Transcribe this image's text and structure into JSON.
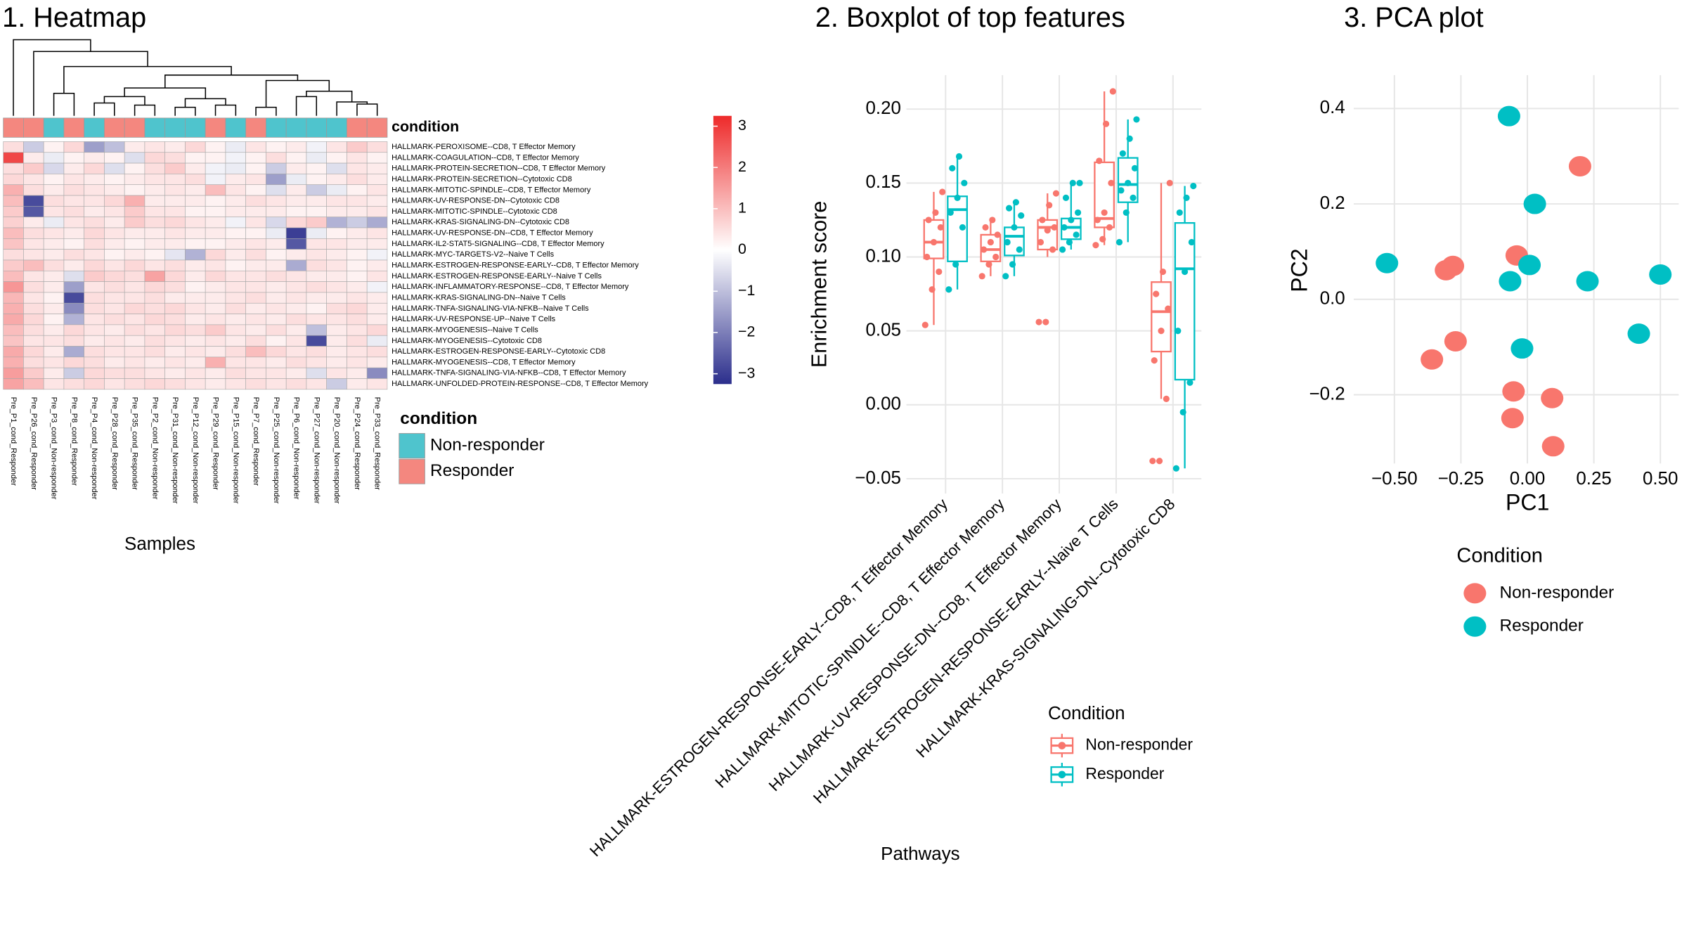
{
  "chart_data": [
    {
      "type": "heatmap",
      "title": "1. Heatmap",
      "x_label": "Samples",
      "condition_label": "condition",
      "legend_title": "condition",
      "condition_levels": [
        {
          "name": "Non-responder",
          "color": "#4fc4cd"
        },
        {
          "name": "Responder",
          "color": "#f4877f"
        }
      ],
      "columns": [
        "Pre_P1_cond_Responder",
        "Pre_P26_cond_Responder",
        "Pre_P3_cond_Non-responder",
        "Pre_P8_cond_Responder",
        "Pre_P4_cond_Non-responder",
        "Pre_P28_cond_Responder",
        "Pre_P35_cond_Responder",
        "Pre_P2_cond_Non-responder",
        "Pre_P31_cond_Non-responder",
        "Pre_P12_cond_Non-responder",
        "Pre_P29_cond_Responder",
        "Pre_P15_cond_Non-responder",
        "Pre_P7_cond_Responder",
        "Pre_P25_cond_Non-responder",
        "Pre_P6_cond_Non-responder",
        "Pre_P27_cond_Non-responder",
        "Pre_P20_cond_Non-responder",
        "Pre_P24_cond_Responder",
        "Pre_P33_cond_Responder"
      ],
      "column_conditions": [
        "Responder",
        "Responder",
        "Non-responder",
        "Responder",
        "Non-responder",
        "Responder",
        "Responder",
        "Non-responder",
        "Non-responder",
        "Non-responder",
        "Responder",
        "Non-responder",
        "Responder",
        "Non-responder",
        "Non-responder",
        "Non-responder",
        "Non-responder",
        "Responder",
        "Responder"
      ],
      "rows": [
        "HALLMARK-PEROXISOME--CD8, T Effector Memory",
        "HALLMARK-COAGULATION--CD8, T Effector Memory",
        "HALLMARK-PROTEIN-SECRETION--CD8, T Effector Memory",
        "HALLMARK-PROTEIN-SECRETION--Cytotoxic CD8",
        "HALLMARK-MITOTIC-SPINDLE--CD8, T Effector Memory",
        "HALLMARK-UV-RESPONSE-DN--Cytotoxic CD8",
        "HALLMARK-MITOTIC-SPINDLE--Cytotoxic CD8",
        "HALLMARK-KRAS-SIGNALING-DN--Cytotoxic CD8",
        "HALLMARK-UV-RESPONSE-DN--CD8, T Effector Memory",
        "HALLMARK-IL2-STAT5-SIGNALING--CD8, T Effector Memory",
        "HALLMARK-MYC-TARGETS-V2--Naive T Cells",
        "HALLMARK-ESTROGEN-RESPONSE-EARLY--CD8, T Effector Memory",
        "HALLMARK-ESTROGEN-RESPONSE-EARLY--Naive T Cells",
        "HALLMARK-INFLAMMATORY-RESPONSE--CD8, T Effector Memory",
        "HALLMARK-KRAS-SIGNALING-DN--Naive T Cells",
        "HALLMARK-TNFA-SIGNALING-VIA-NFKB--Naive T Cells",
        "HALLMARK-UV-RESPONSE-UP--Naive T Cells",
        "HALLMARK-MYOGENESIS--Naive T Cells",
        "HALLMARK-MYOGENESIS--Cytotoxic CD8",
        "HALLMARK-ESTROGEN-RESPONSE-EARLY--Cytotoxic CD8",
        "HALLMARK-MYOGENESIS--CD8, T Effector Memory",
        "HALLMARK-TNFA-SIGNALING-VIA-NFKB--CD8, T Effector Memory",
        "HALLMARK-UNFOLDED-PROTEIN-RESPONSE--CD8, T Effector Memory"
      ],
      "values": [
        [
          0.5,
          -0.8,
          0.2,
          0.6,
          -1.5,
          -1,
          0.3,
          0.4,
          0.3,
          0.6,
          0.2,
          -0.3,
          0.4,
          0.2,
          0.3,
          -0.2,
          0.4,
          0.8,
          0.5
        ],
        [
          2.8,
          0.3,
          -0.3,
          0.2,
          0.3,
          0.2,
          -0.5,
          0.6,
          0.5,
          0.2,
          0.2,
          -0.2,
          0.2,
          0.5,
          0.2,
          -0.3,
          0.2,
          0.4,
          0.2
        ],
        [
          0.5,
          0.8,
          -0.6,
          0.3,
          0.6,
          -0.5,
          0.2,
          0.5,
          0.8,
          0.3,
          -0.2,
          -0.3,
          0.2,
          -0.8,
          0.3,
          0.2,
          -0.5,
          0.4,
          0.3
        ],
        [
          0.6,
          0.4,
          0.2,
          0.4,
          0.3,
          0.2,
          0.3,
          0.4,
          0.4,
          0.5,
          -0.2,
          0.3,
          0.4,
          -1.5,
          -0.3,
          0.2,
          0.3,
          0.5,
          0.3
        ],
        [
          1.2,
          0.5,
          0.3,
          0.5,
          0.4,
          0.3,
          0.2,
          0.3,
          0.4,
          0.3,
          1.0,
          0.4,
          0.2,
          -0.5,
          0.3,
          -0.8,
          -0.3,
          0.2,
          0.4
        ],
        [
          1.0,
          -2.8,
          0.5,
          0.4,
          0.4,
          0.6,
          1.2,
          0.3,
          0.3,
          0.3,
          0.2,
          0.3,
          0.5,
          0.4,
          0.3,
          0.3,
          0.4,
          0.4,
          0.3
        ],
        [
          0.8,
          -2.6,
          0.4,
          0.5,
          0.3,
          0.4,
          0.8,
          0.4,
          0.4,
          0.2,
          0.2,
          0.3,
          0.3,
          0.3,
          0.2,
          0.2,
          0.3,
          0.3,
          0.4
        ],
        [
          0.7,
          0.3,
          -0.3,
          0.4,
          0.5,
          0.3,
          0.8,
          0.5,
          0.6,
          0.4,
          0.3,
          -0.2,
          0.4,
          -0.6,
          0.6,
          0.8,
          -1.2,
          -0.8,
          -1.3
        ],
        [
          1.0,
          0.5,
          0.4,
          0.3,
          0.6,
          0.4,
          0.3,
          0.3,
          0.4,
          0.3,
          0.3,
          0.2,
          0.2,
          -0.3,
          -3.0,
          -0.3,
          0.2,
          0.3,
          0.4
        ],
        [
          0.9,
          0.4,
          0.3,
          0.2,
          0.5,
          0.3,
          0.2,
          0.3,
          0.3,
          0.2,
          0.2,
          0.3,
          0.4,
          0.3,
          -2.6,
          0.4,
          0.4,
          0.3,
          0.3
        ],
        [
          0.5,
          0.4,
          0.3,
          0.5,
          0.4,
          0.2,
          0.3,
          0.2,
          -0.4,
          -1.2,
          0.6,
          0.3,
          0.5,
          0.2,
          0.3,
          0.4,
          0.3,
          0.2,
          -0.2
        ],
        [
          0.8,
          1.0,
          0.5,
          0.3,
          0.6,
          0.4,
          0.6,
          0.4,
          0.5,
          0.3,
          0.4,
          0.2,
          0.3,
          0.3,
          -1.3,
          0.5,
          0.4,
          0.2,
          0.3
        ],
        [
          1.0,
          0.4,
          0.3,
          -0.5,
          0.8,
          0.6,
          0.5,
          1.4,
          0.6,
          0.3,
          0.6,
          0.4,
          0.4,
          0.5,
          0.4,
          0.3,
          0.3,
          0.2,
          0.4
        ],
        [
          1.6,
          0.5,
          0.3,
          -1.5,
          0.4,
          0.5,
          0.4,
          0.6,
          0.5,
          0.2,
          0.3,
          0.4,
          0.4,
          0.3,
          0.4,
          0.5,
          0.4,
          0.3,
          -0.2
        ],
        [
          1.1,
          0.4,
          0.2,
          -2.8,
          0.5,
          0.4,
          0.4,
          0.5,
          0.3,
          0.3,
          0.3,
          0.4,
          0.5,
          0.3,
          0.4,
          0.3,
          0.3,
          0.4,
          0.3
        ],
        [
          1.2,
          0.5,
          0.3,
          -1.8,
          0.5,
          0.4,
          0.6,
          0.5,
          0.6,
          0.4,
          0.3,
          0.5,
          0.3,
          0.4,
          0.3,
          0.2,
          0.5,
          0.6,
          0.3
        ],
        [
          1.3,
          0.6,
          0.2,
          -1.2,
          0.4,
          0.5,
          0.4,
          0.6,
          0.5,
          0.3,
          0.4,
          0.3,
          0.4,
          0.3,
          0.5,
          0.4,
          0.4,
          0.5,
          0.3
        ],
        [
          1.0,
          0.5,
          0.3,
          0.6,
          0.4,
          0.3,
          0.5,
          0.4,
          0.6,
          0.5,
          0.8,
          0.4,
          0.3,
          0.5,
          0.3,
          -1.0,
          0.3,
          0.4,
          0.6
        ],
        [
          0.9,
          0.4,
          0.4,
          0.5,
          0.3,
          0.4,
          0.3,
          0.5,
          0.4,
          0.3,
          0.4,
          0.3,
          0.5,
          0.2,
          0.4,
          -2.8,
          0.3,
          0.5,
          -0.3
        ],
        [
          1.3,
          0.6,
          0.3,
          -1.3,
          0.5,
          0.4,
          0.4,
          0.5,
          0.3,
          0.4,
          0.3,
          0.5,
          1.0,
          0.6,
          0.4,
          0.5,
          0.3,
          0.4,
          0.5
        ],
        [
          1.2,
          0.5,
          0.4,
          0.6,
          0.5,
          0.3,
          0.4,
          0.3,
          0.4,
          0.3,
          1.2,
          0.4,
          0.4,
          0.3,
          0.5,
          0.4,
          0.3,
          0.4,
          0.3
        ],
        [
          1.5,
          0.8,
          0.3,
          -0.8,
          0.6,
          0.5,
          0.5,
          0.4,
          0.3,
          0.4,
          0.3,
          0.5,
          0.4,
          0.4,
          0.3,
          -0.5,
          0.4,
          0.3,
          -1.8
        ],
        [
          1.4,
          1.0,
          0.4,
          0.5,
          0.6,
          0.4,
          0.5,
          0.6,
          0.5,
          0.4,
          0.3,
          0.4,
          0.5,
          0.4,
          0.5,
          0.4,
          -0.8,
          0.3,
          0.4
        ]
      ],
      "clim": [
        -3.25,
        3.25
      ],
      "colors": [
        "#2b2e8c",
        "#ffffff",
        "#ee2a2a"
      ],
      "colorbar_ticks": [
        {
          "value": -3,
          "label": "−3"
        },
        {
          "value": -2,
          "label": "−2"
        },
        {
          "value": -1,
          "label": "−1"
        },
        0,
        1,
        2,
        3
      ]
    },
    {
      "type": "boxplot",
      "title": "2. Boxplot of top features",
      "x_label": "Pathways",
      "y_label": "Enrichment score",
      "legend_title": "Condition",
      "categories": [
        "HALLMARK-ESTROGEN-RESPONSE-EARLY--CD8, T Effector Memory",
        "HALLMARK-MITOTIC-SPINDLE--CD8, T Effector Memory",
        "HALLMARK-UV-RESPONSE-DN--CD8, T Effector Memory",
        "HALLMARK-ESTROGEN-RESPONSE-EARLY--Naive T Cells",
        "HALLMARK-KRAS-SIGNALING-DN--Cytotoxic CD8"
      ],
      "series": [
        {
          "name": "Non-responder",
          "color": "#F8766D",
          "boxes": [
            {
              "min": 0.054,
              "q1": 0.099,
              "median": 0.11,
              "q3": 0.125,
              "max": 0.144
            },
            {
              "min": 0.087,
              "q1": 0.097,
              "median": 0.105,
              "q3": 0.115,
              "max": 0.125
            },
            {
              "min": 0.1,
              "q1": 0.105,
              "median": 0.12,
              "q3": 0.125,
              "max": 0.143
            },
            {
              "min": 0.108,
              "q1": 0.12,
              "median": 0.126,
              "q3": 0.164,
              "max": 0.212
            },
            {
              "min": 0.004,
              "q1": 0.036,
              "median": 0.063,
              "q3": 0.083,
              "max": 0.15
            }
          ],
          "points": [
            [
              0.054,
              0.078,
              0.09,
              0.1,
              0.11,
              0.12,
              0.125,
              0.13,
              0.144
            ],
            [
              0.087,
              0.095,
              0.1,
              0.105,
              0.11,
              0.115,
              0.12,
              0.125
            ],
            [
              0.056,
              0.056,
              0.105,
              0.11,
              0.118,
              0.12,
              0.125,
              0.135,
              0.143
            ],
            [
              0.108,
              0.112,
              0.12,
              0.125,
              0.13,
              0.15,
              0.165,
              0.19,
              0.212
            ],
            [
              -0.038,
              -0.038,
              0.004,
              0.03,
              0.05,
              0.065,
              0.075,
              0.09,
              0.15
            ]
          ]
        },
        {
          "name": "Responder",
          "color": "#00BFC4",
          "boxes": [
            {
              "min": 0.078,
              "q1": 0.097,
              "median": 0.132,
              "q3": 0.141,
              "max": 0.168
            },
            {
              "min": 0.087,
              "q1": 0.101,
              "median": 0.114,
              "q3": 0.12,
              "max": 0.137
            },
            {
              "min": 0.105,
              "q1": 0.112,
              "median": 0.12,
              "q3": 0.126,
              "max": 0.151
            },
            {
              "min": 0.11,
              "q1": 0.137,
              "median": 0.149,
              "q3": 0.167,
              "max": 0.193
            },
            {
              "min": -0.043,
              "q1": 0.017,
              "median": 0.092,
              "q3": 0.123,
              "max": 0.148
            }
          ],
          "points": [
            [
              0.078,
              0.095,
              0.12,
              0.13,
              0.14,
              0.15,
              0.16,
              0.168
            ],
            [
              0.087,
              0.095,
              0.105,
              0.11,
              0.12,
              0.128,
              0.133,
              0.137
            ],
            [
              0.105,
              0.11,
              0.115,
              0.12,
              0.125,
              0.13,
              0.14,
              0.15,
              0.15
            ],
            [
              0.11,
              0.13,
              0.14,
              0.145,
              0.15,
              0.16,
              0.17,
              0.18,
              0.193
            ],
            [
              -0.043,
              -0.005,
              0.015,
              0.05,
              0.09,
              0.11,
              0.13,
              0.14,
              0.148
            ]
          ]
        }
      ],
      "ylim": [
        -0.06,
        0.223
      ],
      "yticks": [
        {
          "value": -0.05,
          "label": "−0.05"
        },
        {
          "value": 0,
          "label": "0.00"
        },
        {
          "value": 0.05,
          "label": "0.05"
        },
        {
          "value": 0.1,
          "label": "0.10"
        },
        {
          "value": 0.15,
          "label": "0.15"
        },
        {
          "value": 0.2,
          "label": "0.20"
        }
      ],
      "grid": true
    },
    {
      "type": "scatter",
      "title": "3. PCA plot",
      "x_label": "PC1",
      "y_label": "PC2",
      "legend_title": "Condition",
      "series": [
        {
          "name": "Non-responder",
          "color": "#F8766D",
          "x": [
            0.198,
            -0.04,
            -0.28,
            -0.306,
            -0.27,
            -0.359,
            -0.052,
            0.093,
            -0.056,
            0.097
          ],
          "y": [
            0.279,
            0.092,
            0.07,
            0.061,
            -0.088,
            -0.126,
            -0.193,
            -0.207,
            -0.249,
            -0.308
          ]
        },
        {
          "name": "Responder",
          "color": "#00BFC4",
          "x": [
            -0.069,
            0.028,
            -0.528,
            0.008,
            -0.065,
            0.226,
            0.5,
            0.419,
            -0.02
          ],
          "y": [
            0.384,
            0.2,
            0.076,
            0.072,
            0.038,
            0.038,
            0.052,
            -0.072,
            -0.103
          ]
        }
      ],
      "xlim": [
        -0.653,
        0.569
      ],
      "ylim": [
        -0.344,
        0.47
      ],
      "xticks": [
        {
          "value": -0.5,
          "label": "−0.50"
        },
        {
          "value": -0.25,
          "label": "−0.25"
        },
        {
          "value": 0,
          "label": "0.00"
        },
        0.25,
        {
          "value": 0.5,
          "label": "0.50"
        }
      ],
      "yticks": [
        {
          "value": -0.2,
          "label": "−0.2"
        },
        {
          "value": 0,
          "label": "0.0"
        },
        0.2,
        0.4
      ],
      "grid": true
    }
  ]
}
